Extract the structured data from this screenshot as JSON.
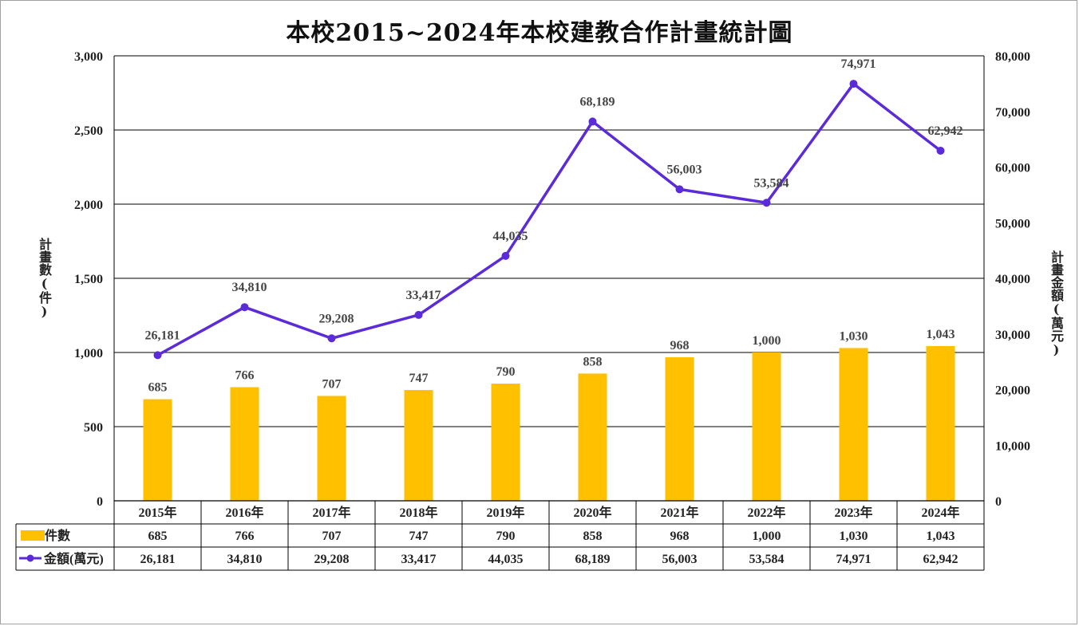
{
  "title": "本校2015~2024年本校建教合作計畫統計圖",
  "chart_data": {
    "type": "bar",
    "title": "本校2015~2024年本校建教合作計畫統計圖",
    "categories": [
      "2015年",
      "2016年",
      "2017年",
      "2018年",
      "2019年",
      "2020年",
      "2021年",
      "2022年",
      "2023年",
      "2024年"
    ],
    "ylabel": "計畫數(件)",
    "y2label": "計畫金額(萬元)",
    "ylim": [
      0,
      3000
    ],
    "y2lim": [
      0,
      80000
    ],
    "yticks": [
      "0",
      "500",
      "1,000",
      "1,500",
      "2,000",
      "2,500",
      "3,000"
    ],
    "y2ticks": [
      "0",
      "10,000",
      "20,000",
      "30,000",
      "40,000",
      "50,000",
      "60,000",
      "70,000",
      "80,000"
    ],
    "grid": true,
    "legend": "data-table",
    "series": [
      {
        "name": "件數",
        "type": "bar",
        "axis": "left",
        "color": "#ffc000",
        "values": [
          685,
          766,
          707,
          747,
          790,
          858,
          968,
          1000,
          1030,
          1043
        ],
        "labels": [
          "685",
          "766",
          "707",
          "747",
          "790",
          "858",
          "968",
          "1,000",
          "1,030",
          "1,043"
        ]
      },
      {
        "name": "金額(萬元)",
        "type": "line",
        "axis": "right",
        "color": "#5b2bd9",
        "values": [
          26181,
          34810,
          29208,
          33417,
          44035,
          68189,
          56003,
          53584,
          74971,
          62942
        ],
        "labels": [
          "26,181",
          "34,810",
          "29,208",
          "33,417",
          "44,035",
          "68,189",
          "56,003",
          "53,584",
          "74,971",
          "62,942"
        ]
      }
    ]
  }
}
